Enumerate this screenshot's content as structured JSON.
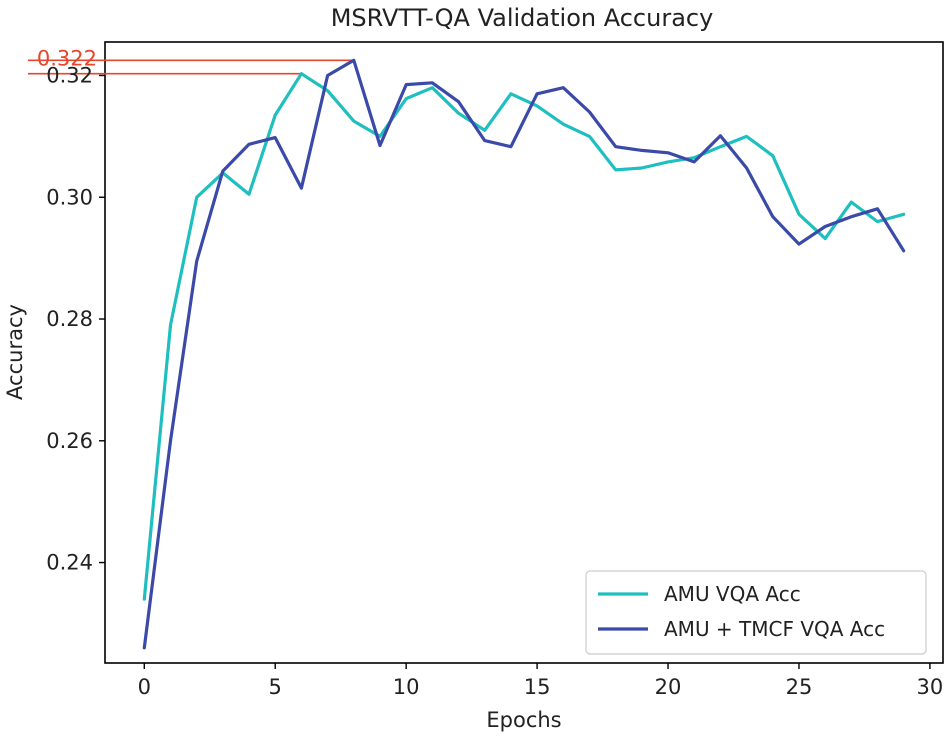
{
  "chart_data": {
    "type": "line",
    "title": "MSRVTT-QA Validation Accuracy",
    "xlabel": "Epochs",
    "ylabel": "Accuracy",
    "xlim": [
      -1.5,
      30.5
    ],
    "ylim": [
      0.2235,
      0.3255
    ],
    "xticks": [
      0,
      5,
      10,
      15,
      20,
      25,
      30
    ],
    "xtick_labels": [
      "0",
      "5",
      "10",
      "15",
      "20",
      "25",
      "30"
    ],
    "yticks": [
      0.24,
      0.26,
      0.28,
      0.3,
      0.32
    ],
    "ytick_labels": [
      "0.24",
      "0.26",
      "0.28",
      "0.30",
      "0.32"
    ],
    "grid": false,
    "legend_position": "bottom-right",
    "series": [
      {
        "name": "AMU VQA Acc",
        "color": "#1fbfbf",
        "x": [
          0,
          1,
          2,
          3,
          4,
          5,
          6,
          7,
          8,
          9,
          10,
          11,
          12,
          13,
          14,
          15,
          16,
          17,
          18,
          19,
          20,
          21,
          22,
          23,
          24,
          25,
          26,
          27,
          28,
          29
        ],
        "values": [
          0.234,
          0.279,
          0.3,
          0.304,
          0.3005,
          0.3135,
          0.3203,
          0.3175,
          0.3125,
          0.31,
          0.3162,
          0.318,
          0.3138,
          0.311,
          0.317,
          0.315,
          0.312,
          0.31,
          0.3045,
          0.3048,
          0.3058,
          0.3065,
          0.3083,
          0.31,
          0.3068,
          0.2972,
          0.2932,
          0.2992,
          0.296,
          0.2972
        ]
      },
      {
        "name": "AMU + TMCF VQA Acc",
        "color": "#3b4aa8",
        "x": [
          0,
          1,
          2,
          3,
          4,
          5,
          6,
          7,
          8,
          9,
          10,
          11,
          12,
          13,
          14,
          15,
          16,
          17,
          18,
          19,
          20,
          21,
          22,
          23,
          24,
          25,
          26,
          27,
          28,
          29
        ],
        "values": [
          0.226,
          0.26,
          0.2895,
          0.3043,
          0.3087,
          0.3098,
          0.3015,
          0.32,
          0.3225,
          0.3085,
          0.3185,
          0.3188,
          0.3157,
          0.3093,
          0.3083,
          0.317,
          0.318,
          0.314,
          0.3083,
          0.3077,
          0.3073,
          0.3058,
          0.3101,
          0.3048,
          0.2968,
          0.2923,
          0.2952,
          0.2968,
          0.2981,
          0.2912
        ]
      }
    ],
    "annotations": [
      {
        "label": "0.322",
        "value": 0.3225,
        "x_end": 8,
        "color": "#e8452c"
      },
      {
        "label": "",
        "value": 0.3203,
        "x_end": 6,
        "color": "#e8452c"
      }
    ]
  }
}
